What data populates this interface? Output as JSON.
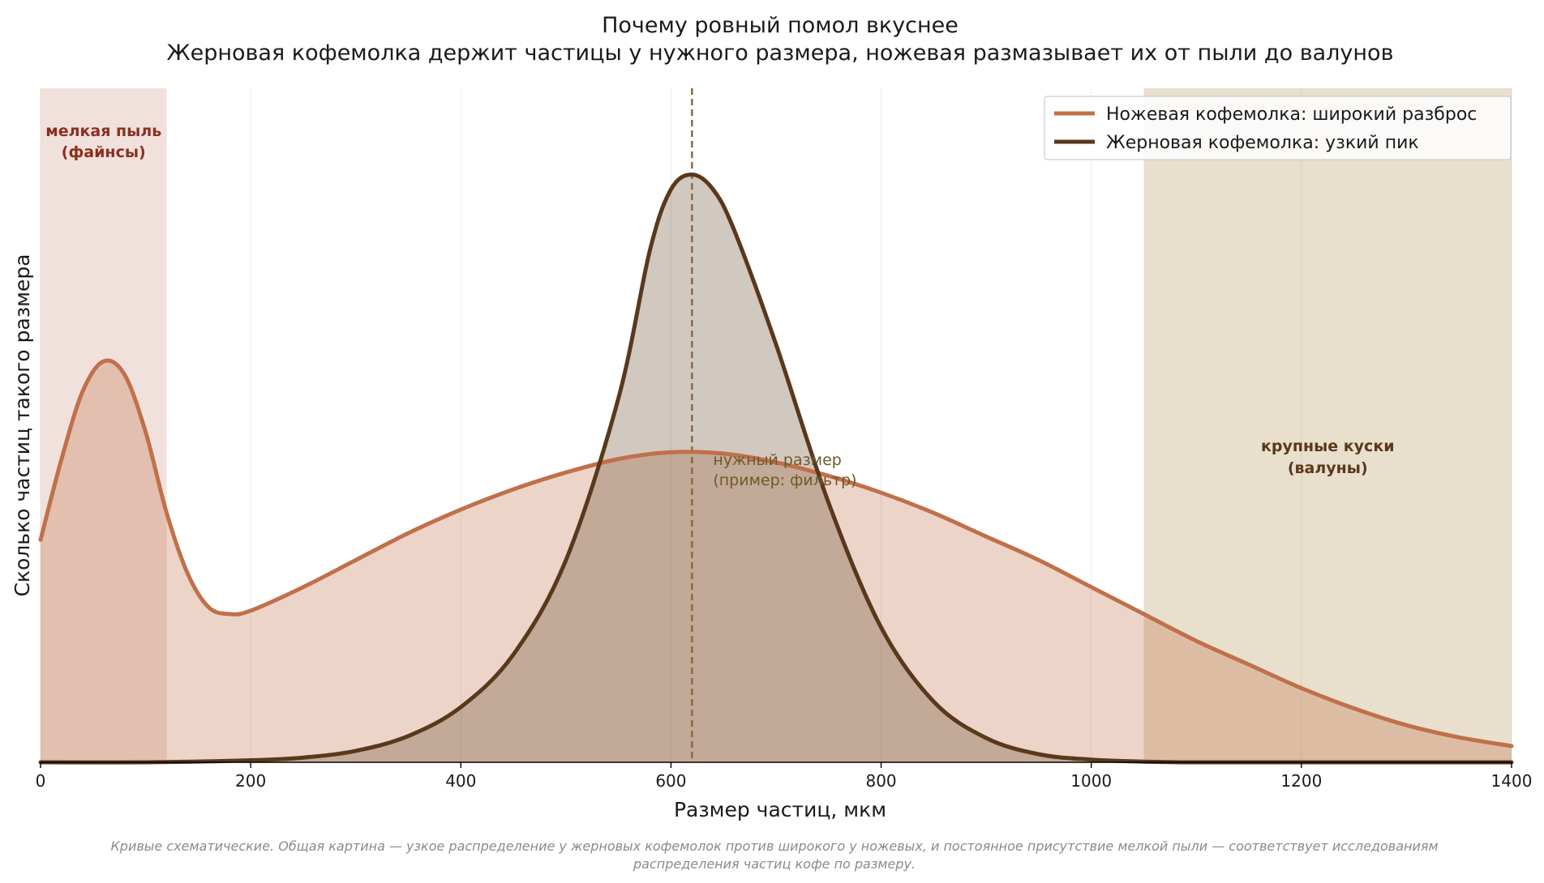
{
  "chart_data": {
    "type": "area",
    "title": "Почему ровный помол вкуснее",
    "subtitle": "Жерновая кофемолка держит частицы у нужного размера, ножевая размазывает их от пыли до валунов",
    "xlabel": "Размер частиц, мкм",
    "ylabel": "Сколько частиц такого размера",
    "xlim": [
      0,
      1400
    ],
    "ylim": [
      0,
      1.0
    ],
    "x_ticks": [
      "0",
      "200",
      "400",
      "600",
      "800",
      "1000",
      "1200",
      "1400"
    ],
    "grid": "vertical",
    "legend_position": "top-right",
    "series": [
      {
        "name": "Ножевая кофемолка: широкий разброс",
        "color": "#c0704a",
        "x": [
          0,
          20,
          40,
          60,
          80,
          100,
          120,
          140,
          160,
          180,
          200,
          250,
          300,
          350,
          400,
          450,
          500,
          550,
          600,
          650,
          700,
          750,
          800,
          850,
          900,
          950,
          1000,
          1050,
          1100,
          1150,
          1200,
          1250,
          1300,
          1350,
          1400
        ],
        "y": [
          0.33,
          0.45,
          0.55,
          0.595,
          0.575,
          0.49,
          0.37,
          0.28,
          0.23,
          0.22,
          0.225,
          0.26,
          0.3,
          0.34,
          0.375,
          0.405,
          0.43,
          0.45,
          0.46,
          0.458,
          0.445,
          0.425,
          0.4,
          0.37,
          0.335,
          0.3,
          0.26,
          0.22,
          0.18,
          0.145,
          0.11,
          0.08,
          0.055,
          0.037,
          0.024
        ]
      },
      {
        "name": "Жерновая кофемолка: узкий пик",
        "color": "#5a381c",
        "x": [
          0,
          100,
          200,
          250,
          300,
          350,
          400,
          450,
          500,
          550,
          580,
          600,
          620,
          640,
          660,
          700,
          750,
          800,
          850,
          900,
          950,
          1000,
          1050,
          1100,
          1200,
          1400
        ],
        "y": [
          0,
          0,
          0.003,
          0.007,
          0.017,
          0.039,
          0.082,
          0.16,
          0.3,
          0.54,
          0.76,
          0.85,
          0.872,
          0.85,
          0.79,
          0.62,
          0.385,
          0.2,
          0.09,
          0.036,
          0.012,
          0.004,
          0.001,
          0,
          0,
          0
        ]
      }
    ],
    "target_line": {
      "x": 620,
      "color": "#8b6b3e",
      "label_line1": "нужный размер",
      "label_line2": "(пример: фильтр)"
    },
    "zones": [
      {
        "range": [
          0,
          120
        ],
        "color": "#f1e1dc",
        "text_color": "#8b2f20",
        "label_line1": "мелкая пыль",
        "label_line2": "(файнсы)"
      },
      {
        "range": [
          1050,
          1400
        ],
        "color": "#e8dfcc",
        "text_color": "#5a381c",
        "label_line1": "крупные куски",
        "label_line2": "(валуны)"
      }
    ],
    "footnote_line1": "Кривые схематические. Общая картина — узкое распределение у жерновых кофемолок против широкого у ножевых, и постоянное присутствие мелкой пыли — соответствует исследованиям",
    "footnote_line2": "распределения частиц кофе по размеру."
  }
}
